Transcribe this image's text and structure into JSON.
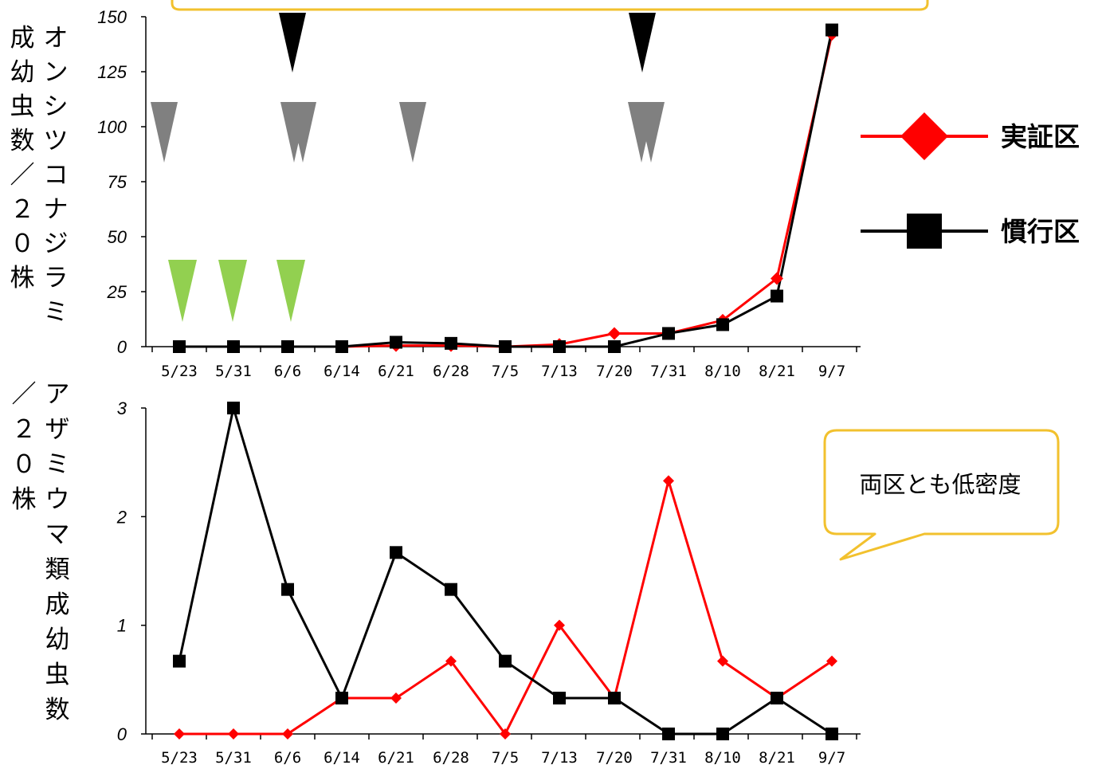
{
  "chart_data": [
    {
      "type": "line",
      "ylabel": [
        "オンシツコナジラミ",
        "成幼虫数／２０株"
      ],
      "categories": [
        "5/23",
        "5/31",
        "6/6",
        "6/14",
        "6/21",
        "6/28",
        "7/5",
        "7/13",
        "7/20",
        "7/31",
        "8/10",
        "8/21",
        "9/7"
      ],
      "ylim": [
        0,
        150
      ],
      "yticks": [
        "0",
        "25",
        "50",
        "75",
        "100",
        "125",
        "150"
      ],
      "series": [
        {
          "name": "実証区",
          "color": "#ff0000",
          "marker": "diamond",
          "values": [
            0,
            0,
            0,
            0,
            0.5,
            0.5,
            0,
            1,
            6,
            6,
            12,
            31,
            142
          ]
        },
        {
          "name": "慣行区",
          "color": "#000000",
          "marker": "square",
          "values": [
            0,
            0,
            0,
            0,
            2,
            1.5,
            0,
            0,
            0,
            6,
            10,
            23,
            144
          ]
        }
      ],
      "markers": {
        "black": [
          "6/6",
          "7/20~7/31"
        ],
        "gray": [
          "5/23",
          "6/6",
          "6/21",
          "7/20~7/31"
        ],
        "green": [
          "5/23",
          "5/31",
          "6/6"
        ]
      },
      "legend": {
        "placement": "right"
      }
    },
    {
      "type": "line",
      "ylabel": [
        "アザミウマ類成幼虫数",
        "／２０株"
      ],
      "categories": [
        "5/23",
        "5/31",
        "6/6",
        "6/14",
        "6/21",
        "6/28",
        "7/5",
        "7/13",
        "7/20",
        "7/31",
        "8/10",
        "8/21",
        "9/7"
      ],
      "ylim": [
        0,
        3
      ],
      "yticks": [
        "0",
        "1",
        "2",
        "3"
      ],
      "series": [
        {
          "name": "実証区",
          "color": "#ff0000",
          "marker": "diamond",
          "values": [
            0,
            0,
            0,
            0.33,
            0.33,
            0.67,
            0,
            1,
            0.33,
            2.33,
            0.67,
            0.33,
            0.67
          ]
        },
        {
          "name": "慣行区",
          "color": "#000000",
          "marker": "square",
          "values": [
            0.67,
            3,
            1.33,
            0.33,
            1.67,
            1.33,
            0.67,
            0.33,
            0.33,
            0,
            0,
            0.33,
            0
          ]
        }
      ],
      "callout": "両区とも低密度"
    }
  ],
  "legend": [
    {
      "label": "実証区",
      "color": "#ff0000",
      "marker": "diamond"
    },
    {
      "label": "慣行区",
      "color": "#000000",
      "marker": "square"
    }
  ],
  "colors": {
    "black_marker": "#000000",
    "gray_marker": "#808080",
    "green_marker": "#92d050",
    "callout_border": "#f2c12e"
  }
}
